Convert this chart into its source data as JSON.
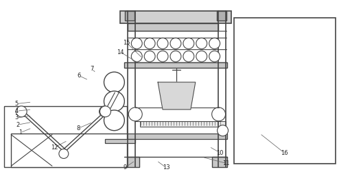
{
  "figsize": [
    4.94,
    2.57
  ],
  "dpi": 100,
  "bg_color": "#ffffff",
  "line_color": "#444444",
  "line_width": 0.7,
  "label_positions": {
    "1": [
      0.058,
      0.755,
      0.092,
      0.728
    ],
    "2": [
      0.05,
      0.71,
      0.092,
      0.695
    ],
    "3": [
      0.047,
      0.67,
      0.092,
      0.658
    ],
    "4": [
      0.047,
      0.632,
      0.092,
      0.622
    ],
    "5": [
      0.047,
      0.59,
      0.092,
      0.58
    ],
    "6": [
      0.232,
      0.43,
      0.26,
      0.455
    ],
    "7": [
      0.27,
      0.39,
      0.282,
      0.415
    ],
    "8": [
      0.23,
      0.73,
      0.272,
      0.695
    ],
    "9": [
      0.368,
      0.955,
      0.398,
      0.915
    ],
    "10": [
      0.65,
      0.87,
      0.618,
      0.835
    ],
    "11": [
      0.668,
      0.93,
      0.598,
      0.895
    ],
    "12": [
      0.158,
      0.84,
      0.198,
      0.8
    ],
    "13": [
      0.49,
      0.955,
      0.462,
      0.915
    ],
    "14": [
      0.355,
      0.295,
      0.405,
      0.355
    ],
    "15": [
      0.372,
      0.24,
      0.42,
      0.33
    ],
    "16": [
      0.84,
      0.87,
      0.768,
      0.76
    ]
  }
}
